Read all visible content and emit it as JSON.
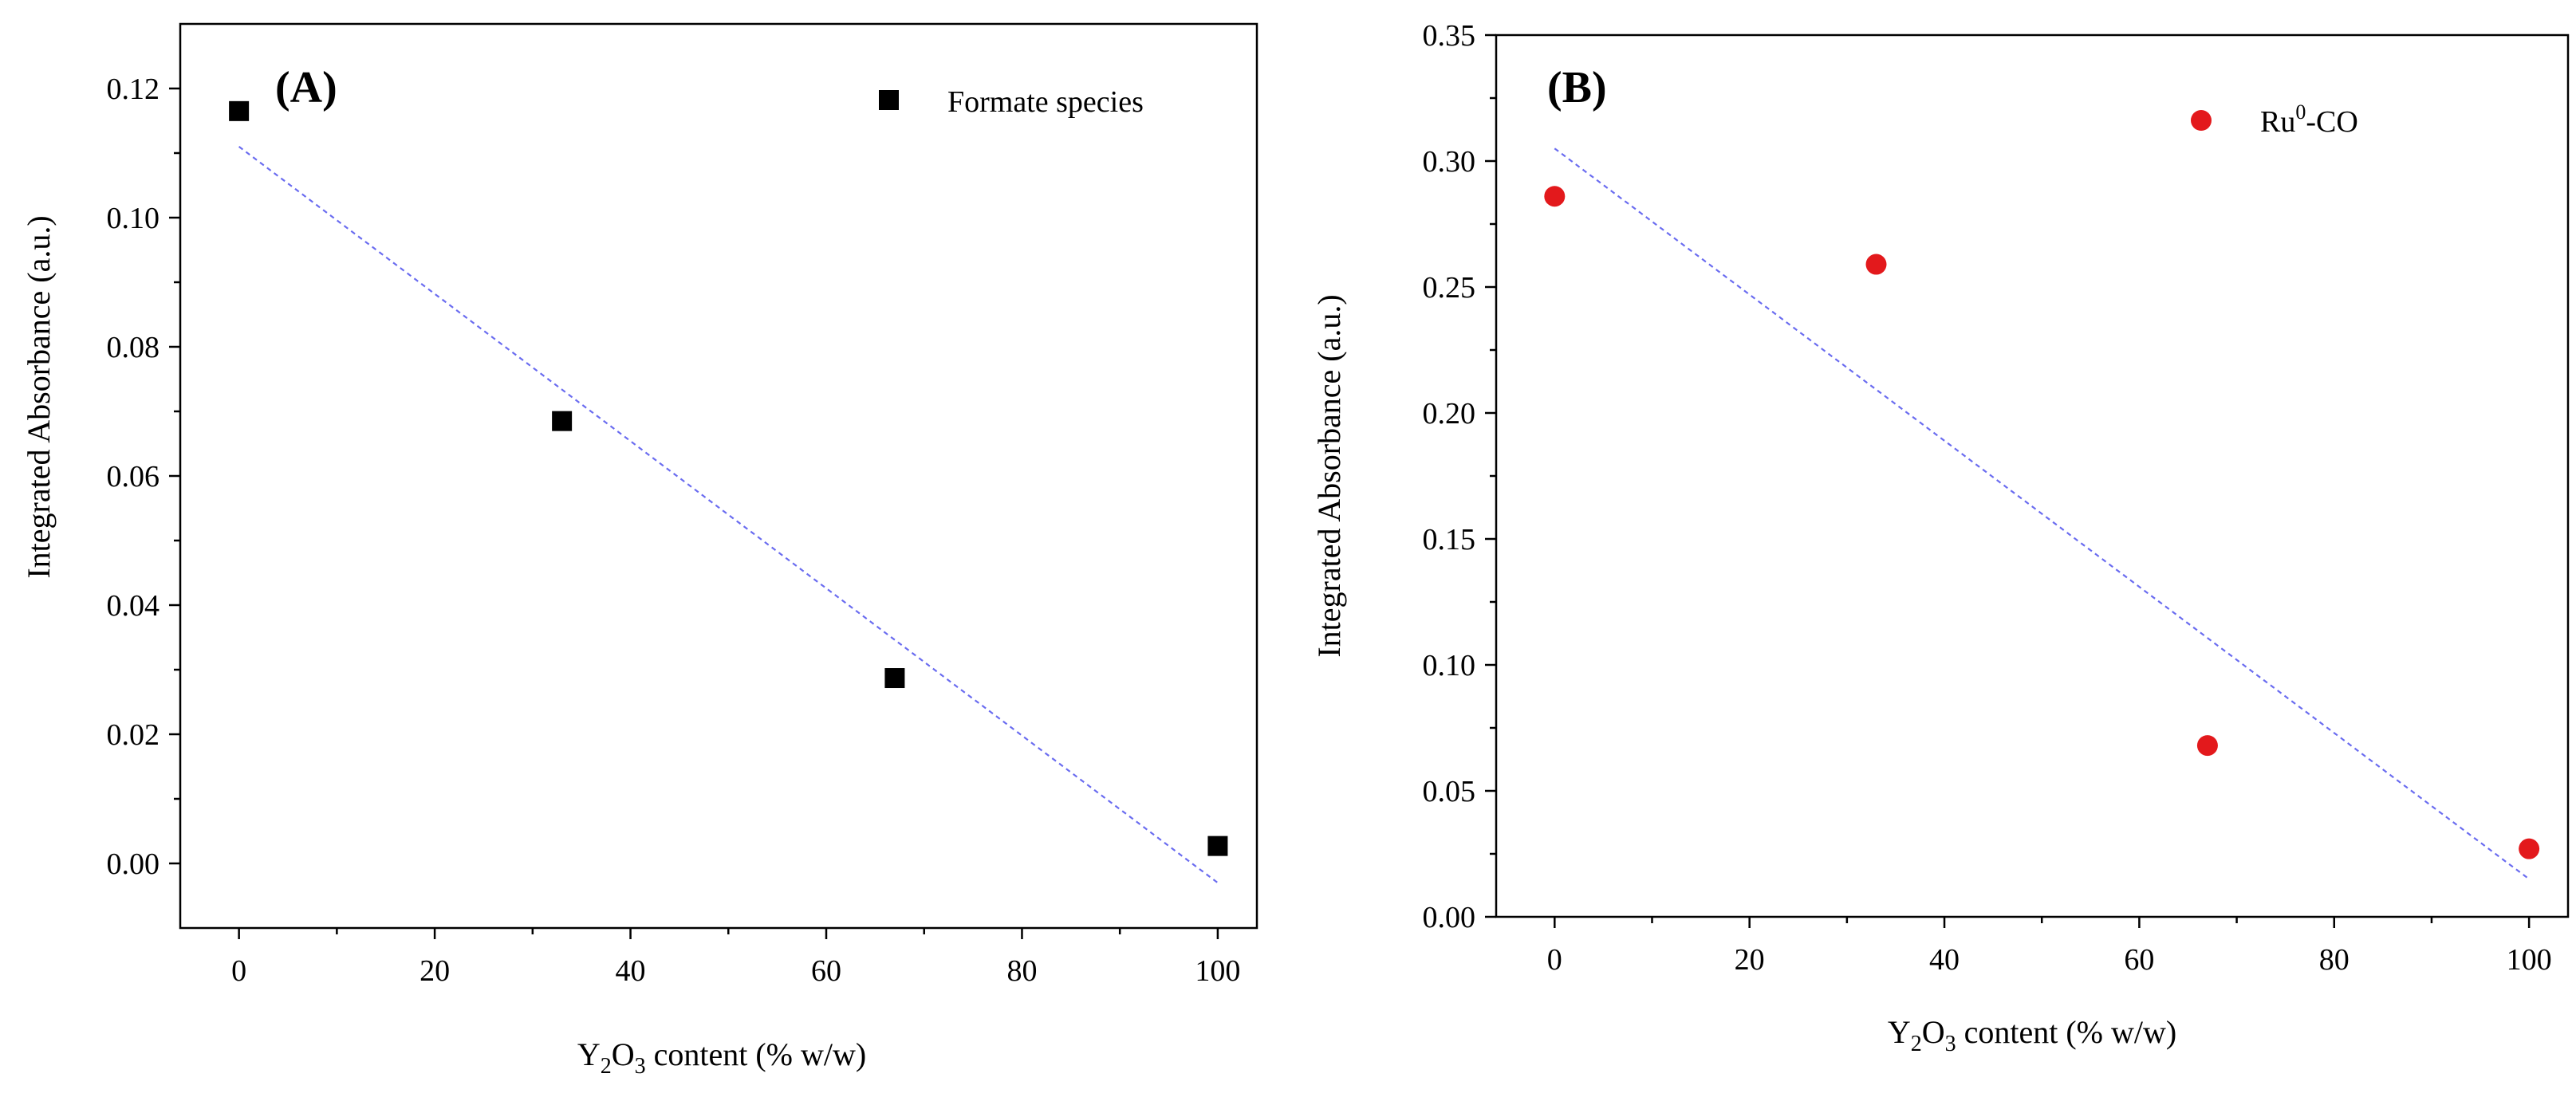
{
  "chart_data": [
    {
      "type": "scatter",
      "panel_label": "(A)",
      "xlabel_pre": "Y",
      "xlabel_sub1": "2",
      "xlabel_mid": "O",
      "xlabel_sub2": "3",
      "xlabel_post": " content (% w/w)",
      "ylabel": "Integrated Absorbance (a.u.)",
      "xlim": [
        -6,
        104
      ],
      "ylim": [
        -0.01,
        0.13
      ],
      "xticks": [
        0,
        20,
        40,
        60,
        80,
        100
      ],
      "xtick_labels": [
        "0",
        "20",
        "40",
        "60",
        "80",
        "100"
      ],
      "yticks": [
        0.0,
        0.02,
        0.04,
        0.06,
        0.08,
        0.1,
        0.12
      ],
      "ytick_labels": [
        "0.00",
        "0.02",
        "0.04",
        "0.06",
        "0.08",
        "0.10",
        "0.12"
      ],
      "legend": "Formate species",
      "legend_position": "top-right",
      "marker": "square",
      "color": "#000000",
      "fit_color": "#6a6cf0",
      "points": [
        {
          "x": 0,
          "y": 0.1165
        },
        {
          "x": 33,
          "y": 0.0685
        },
        {
          "x": 67,
          "y": 0.0287
        },
        {
          "x": 100,
          "y": 0.0027
        }
      ],
      "fit_line": [
        {
          "x": 0,
          "y": 0.111
        },
        {
          "x": 100,
          "y": -0.003
        }
      ]
    },
    {
      "type": "scatter",
      "panel_label": "(B)",
      "xlabel_pre": "Y",
      "xlabel_sub1": "2",
      "xlabel_mid": "O",
      "xlabel_sub2": "3",
      "xlabel_post": " content (% w/w)",
      "ylabel": "Integrated Absorbance (a.u.)",
      "xlim": [
        -6,
        104
      ],
      "ylim": [
        0.0,
        0.35
      ],
      "xticks": [
        0,
        20,
        40,
        60,
        80,
        100
      ],
      "xtick_labels": [
        "0",
        "20",
        "40",
        "60",
        "80",
        "100"
      ],
      "yticks": [
        0.0,
        0.05,
        0.1,
        0.15,
        0.2,
        0.25,
        0.3,
        0.35
      ],
      "ytick_labels": [
        "0.00",
        "0.05",
        "0.10",
        "0.15",
        "0.20",
        "0.25",
        "0.30",
        "0.35"
      ],
      "legend_base": "Ru",
      "legend_sup": "0",
      "legend_suffix": "-CO",
      "legend_position": "top-right",
      "marker": "circle",
      "color": "#e3191c",
      "fit_color": "#6a6cf0",
      "points": [
        {
          "x": 0,
          "y": 0.286
        },
        {
          "x": 33,
          "y": 0.259
        },
        {
          "x": 67,
          "y": 0.068
        },
        {
          "x": 100,
          "y": 0.027
        }
      ],
      "fit_line": [
        {
          "x": 0,
          "y": 0.305
        },
        {
          "x": 100,
          "y": 0.015
        }
      ]
    }
  ]
}
